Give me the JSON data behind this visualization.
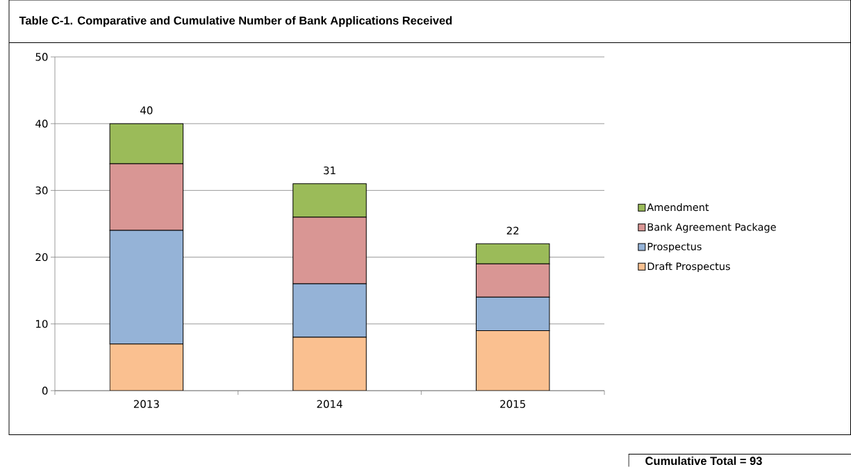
{
  "chart_data": {
    "type": "bar",
    "title": "Table C-1.  Comparative and Cumulative Number of Bank Applications Received",
    "categories": [
      "2013",
      "2014",
      "2015"
    ],
    "stacked": true,
    "series": [
      {
        "name": "Draft Prospectus",
        "color": "#fac090",
        "values": [
          7,
          8,
          9
        ]
      },
      {
        "name": "Prospectus",
        "color": "#95b3d7",
        "values": [
          17,
          8,
          5
        ]
      },
      {
        "name": "Bank Agreement Package",
        "color": "#d99694",
        "values": [
          10,
          10,
          5
        ]
      },
      {
        "name": "Amendment",
        "color": "#9bbb59",
        "values": [
          6,
          5,
          3
        ]
      }
    ],
    "ylim": [
      0,
      50
    ],
    "yticks": [
      0,
      10,
      20,
      30,
      40,
      50
    ],
    "grid": "y",
    "legend": "right",
    "totals": [
      "40",
      "31",
      "22"
    ],
    "annotations": [
      "Cumulative Total = 93"
    ]
  }
}
